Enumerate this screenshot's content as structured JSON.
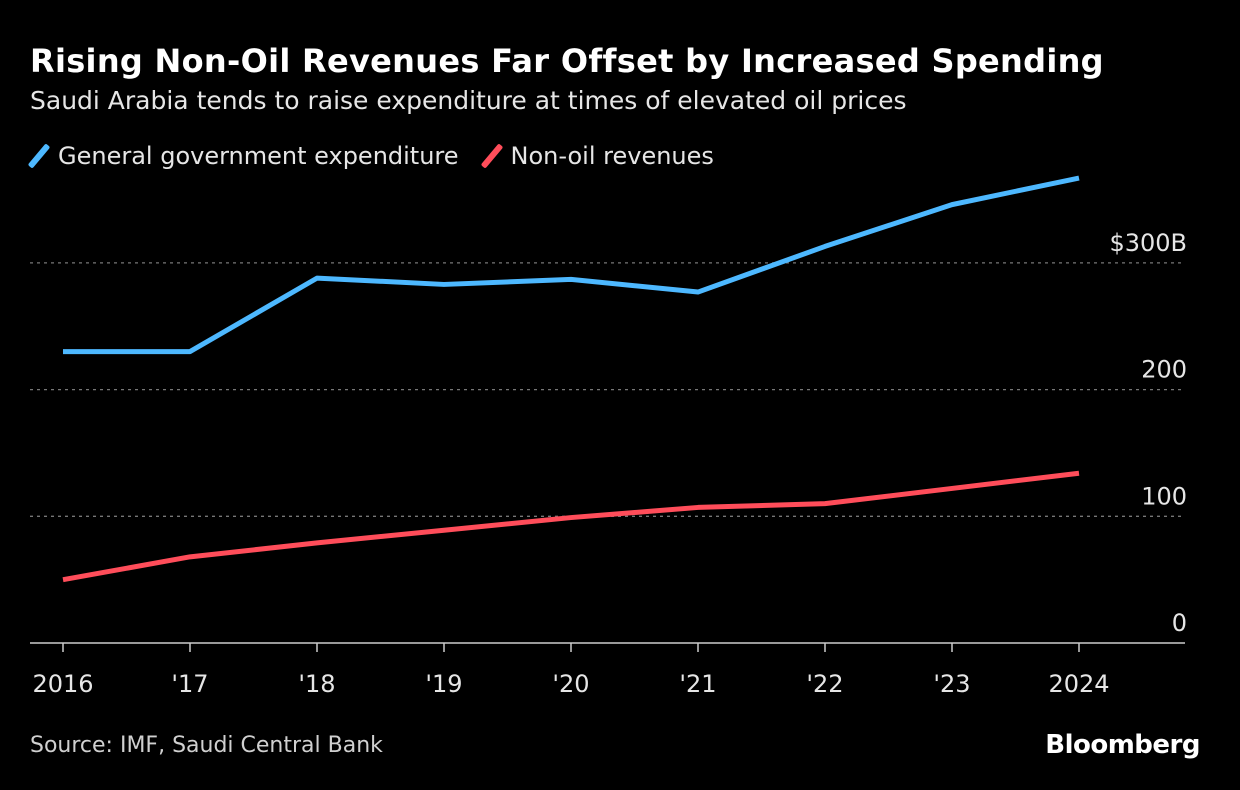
{
  "chart_data": {
    "type": "line",
    "title": "Rising Non-Oil Revenues Far Offset by Increased Spending",
    "subtitle": "Saudi Arabia tends to raise expenditure at times of elevated oil prices",
    "x": [
      "2016",
      "'17",
      "'18",
      "'19",
      "'20",
      "'21",
      "'22",
      "'23",
      "2024"
    ],
    "series": [
      {
        "name": "General government expenditure",
        "color": "#4db8ff",
        "values": [
          230,
          230,
          288,
          283,
          287,
          277,
          313,
          346,
          367
        ]
      },
      {
        "name": "Non-oil revenues",
        "color": "#ff4d5a",
        "values": [
          50,
          68,
          79,
          89,
          99,
          107,
          110,
          122,
          134
        ]
      }
    ],
    "yticks": [
      0,
      100,
      200,
      300
    ],
    "ytick_labels": [
      "0",
      "100",
      "200",
      "$300B"
    ],
    "ylim": [
      0,
      380
    ],
    "grid": true,
    "legend": "top-left",
    "xlabel": "",
    "ylabel": ""
  },
  "source": "Source: IMF, Saudi Central Bank",
  "brand": "Bloomberg"
}
